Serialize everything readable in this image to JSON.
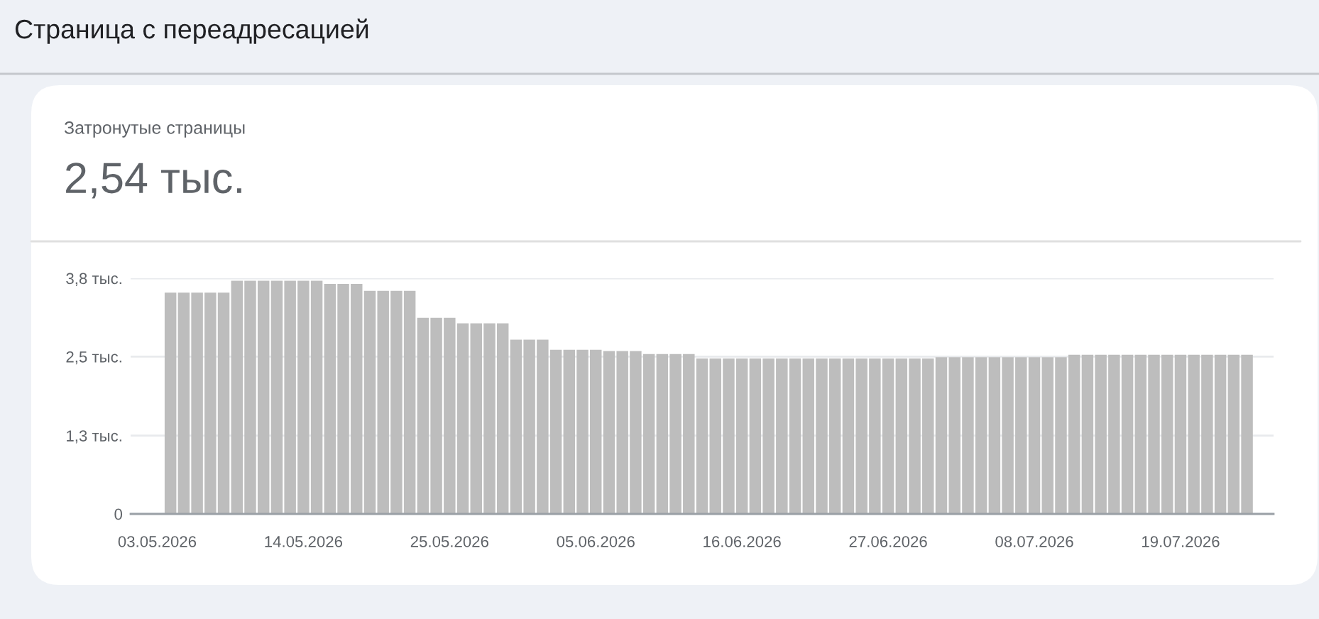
{
  "chart_data": {
    "type": "bar",
    "title": "Страница с переадресацией",
    "subtitle": "Затронутые страницы",
    "annotations": [
      "2,54 тыс."
    ],
    "x": [
      "2026-05-04",
      "2026-05-05",
      "2026-05-06",
      "2026-05-07",
      "2026-05-08",
      "2026-05-09",
      "2026-05-10",
      "2026-05-11",
      "2026-05-12",
      "2026-05-13",
      "2026-05-14",
      "2026-05-15",
      "2026-05-16",
      "2026-05-17",
      "2026-05-18",
      "2026-05-19",
      "2026-05-20",
      "2026-05-21",
      "2026-05-22",
      "2026-05-23",
      "2026-05-24",
      "2026-05-25",
      "2026-05-26",
      "2026-05-27",
      "2026-05-28",
      "2026-05-29",
      "2026-05-30",
      "2026-05-31",
      "2026-06-01",
      "2026-06-02",
      "2026-06-03",
      "2026-06-04",
      "2026-06-05",
      "2026-06-06",
      "2026-06-07",
      "2026-06-08",
      "2026-06-09",
      "2026-06-10",
      "2026-06-11",
      "2026-06-12",
      "2026-06-13",
      "2026-06-14",
      "2026-06-15",
      "2026-06-16",
      "2026-06-17",
      "2026-06-18",
      "2026-06-19",
      "2026-06-20",
      "2026-06-21",
      "2026-06-22",
      "2026-06-23",
      "2026-06-24",
      "2026-06-25",
      "2026-06-26",
      "2026-06-27",
      "2026-06-28",
      "2026-06-29",
      "2026-06-30",
      "2026-07-01",
      "2026-07-02",
      "2026-07-03",
      "2026-07-04",
      "2026-07-05",
      "2026-07-06",
      "2026-07-07",
      "2026-07-08",
      "2026-07-09",
      "2026-07-10",
      "2026-07-11",
      "2026-07-12",
      "2026-07-13",
      "2026-07-14",
      "2026-07-15",
      "2026-07-16",
      "2026-07-17",
      "2026-07-18",
      "2026-07-19",
      "2026-07-20",
      "2026-07-21",
      "2026-07-22",
      "2026-07-23",
      "2026-07-24"
    ],
    "values": [
      3.53,
      3.53,
      3.53,
      3.53,
      3.53,
      3.72,
      3.72,
      3.72,
      3.72,
      3.72,
      3.72,
      3.72,
      3.67,
      3.67,
      3.67,
      3.56,
      3.56,
      3.56,
      3.56,
      3.13,
      3.13,
      3.13,
      3.04,
      3.04,
      3.04,
      3.04,
      2.78,
      2.78,
      2.78,
      2.62,
      2.62,
      2.62,
      2.62,
      2.6,
      2.6,
      2.6,
      2.55,
      2.55,
      2.55,
      2.55,
      2.48,
      2.48,
      2.48,
      2.48,
      2.48,
      2.48,
      2.48,
      2.48,
      2.48,
      2.48,
      2.48,
      2.48,
      2.48,
      2.48,
      2.48,
      2.48,
      2.48,
      2.48,
      2.5,
      2.5,
      2.5,
      2.5,
      2.5,
      2.5,
      2.5,
      2.5,
      2.5,
      2.5,
      2.54,
      2.54,
      2.54,
      2.54,
      2.54,
      2.54,
      2.54,
      2.54,
      2.54,
      2.54,
      2.54,
      2.54,
      2.54,
      2.54
    ],
    "color": "#bdbdbd",
    "xlim": [
      "2026-05-01",
      "2026-07-26"
    ],
    "xticks": [
      {
        "value": "2026-05-03",
        "label": "03.05.2026"
      },
      {
        "value": "2026-05-14",
        "label": "14.05.2026"
      },
      {
        "value": "2026-05-25",
        "label": "25.05.2026"
      },
      {
        "value": "2026-06-05",
        "label": "05.06.2026"
      },
      {
        "value": "2026-06-16",
        "label": "16.06.2026"
      },
      {
        "value": "2026-06-27",
        "label": "27.06.2026"
      },
      {
        "value": "2026-07-08",
        "label": "08.07.2026"
      },
      {
        "value": "2026-07-19",
        "label": "19.07.2026"
      }
    ],
    "ylim": [
      0,
      3.76
    ],
    "yticks": [
      0,
      {
        "value": 1.25,
        "label": "1,3 тыс."
      },
      {
        "value": 2.51,
        "label": "2,5 тыс."
      },
      {
        "value": 3.76,
        "label": "3,8 тыс."
      }
    ],
    "grid": "y"
  }
}
